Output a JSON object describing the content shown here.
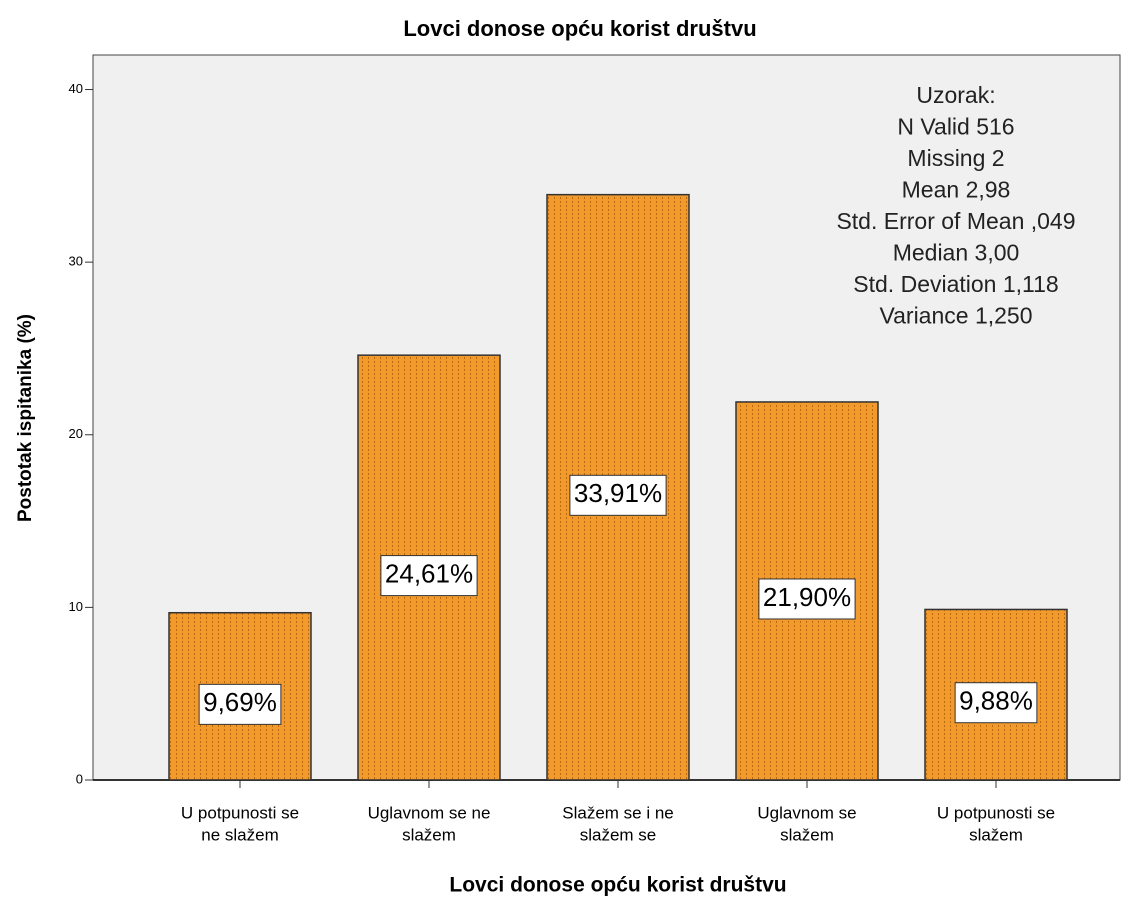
{
  "chart_data": {
    "type": "bar",
    "title": "Lovci donose opću korist društvu",
    "x_label": "Lovci donose opću korist društvu",
    "y_label": "Postotak ispitanika (%)",
    "categories": [
      [
        "U potpunosti se",
        "ne slažem"
      ],
      [
        "Uglavnom se ne",
        "slažem"
      ],
      [
        "Slažem se i ne",
        "slažem se"
      ],
      [
        "Uglavnom se",
        "slažem"
      ],
      [
        "U potpunosti se",
        "slažem"
      ]
    ],
    "values": [
      9.69,
      24.61,
      33.91,
      21.9,
      9.88
    ],
    "value_labels": [
      "9,69%",
      "24,61%",
      "33,91%",
      "21,90%",
      "9,88%"
    ],
    "color": "#f39a2c",
    "ylim": [
      0,
      42
    ],
    "yticks": [
      0,
      10,
      20,
      30,
      40
    ],
    "annotation": [
      "Uzorak:",
      "N  Valid  516",
      "Missing  2",
      "Mean  2,98",
      "Std. Error of Mean  ,049",
      "Median  3,00",
      "Std. Deviation  1,118",
      "Variance  1,250"
    ]
  }
}
